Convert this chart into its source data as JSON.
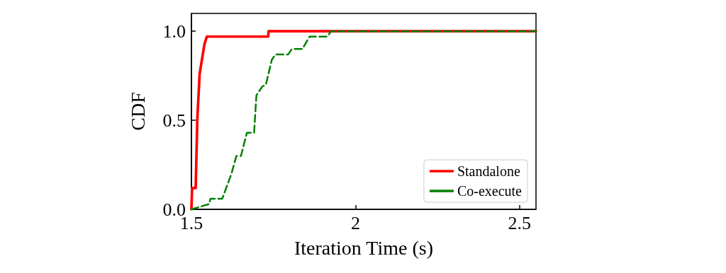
{
  "chart_data": {
    "type": "line",
    "xlabel": "Iteration Time (s)",
    "ylabel": "CDF",
    "xlim": [
      1.5,
      2.55
    ],
    "ylim": [
      0,
      1.1
    ],
    "xticks": [
      1.5,
      2,
      2.5
    ],
    "yticks": [
      {
        "value": 0,
        "label": "0.0"
      },
      0.5,
      {
        "value": 1,
        "label": "1.0"
      }
    ],
    "legend": "bottom right",
    "marker": "none",
    "grid": false,
    "series": [
      {
        "name": "Standalone",
        "color": "#ff0000",
        "line_style": "solid",
        "x": [
          1.5,
          1.502,
          1.513,
          1.518,
          1.525,
          1.532,
          1.54,
          1.547,
          1.734,
          1.735,
          2.55
        ],
        "values": [
          0,
          0.12,
          0.12,
          0.51,
          0.76,
          0.84,
          0.93,
          0.97,
          0.97,
          1,
          1
        ]
      },
      {
        "name": "Co-execute",
        "color": "#008000",
        "line_style": "dashed",
        "x": [
          1.5,
          1.554,
          1.558,
          1.594,
          1.622,
          1.637,
          1.651,
          1.669,
          1.691,
          1.698,
          1.716,
          1.727,
          1.745,
          1.756,
          1.795,
          1.806,
          1.838,
          1.86,
          1.914,
          1.925,
          2.55
        ],
        "values": [
          0,
          0.03,
          0.06,
          0.06,
          0.2,
          0.3,
          0.3,
          0.43,
          0.43,
          0.64,
          0.69,
          0.7,
          0.84,
          0.87,
          0.87,
          0.9,
          0.9,
          0.97,
          0.97,
          1,
          1
        ]
      }
    ]
  }
}
